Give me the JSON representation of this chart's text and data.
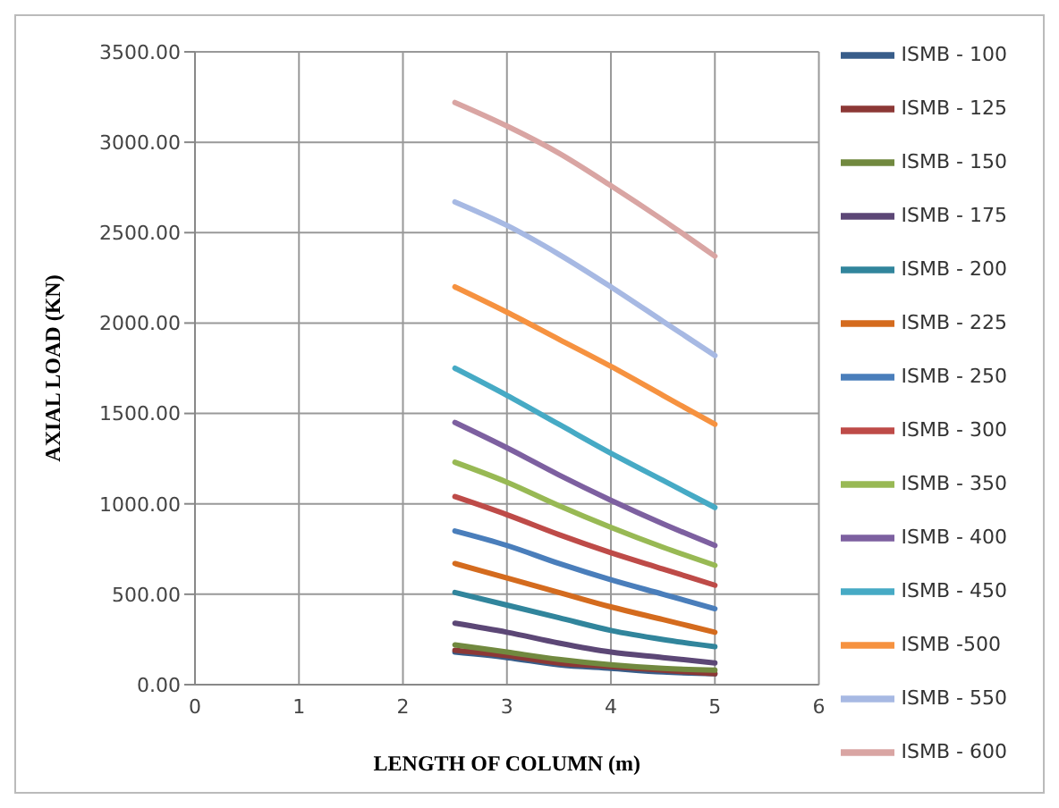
{
  "chart_data": {
    "type": "line",
    "xlabel": "LENGTH OF COLUMN (m)",
    "ylabel": "AXIAL LOAD (KN)",
    "x": [
      2.5,
      3,
      3.5,
      4,
      4.5,
      5
    ],
    "xlim": [
      0,
      6
    ],
    "xticks": [
      0,
      1,
      2,
      3,
      4,
      5,
      6
    ],
    "ylim": [
      0,
      3500
    ],
    "yticks": [
      {
        "value": 0,
        "label": "0.00"
      },
      {
        "value": 500,
        "label": "500.00"
      },
      {
        "value": 1000,
        "label": "1000.00"
      },
      {
        "value": 1500,
        "label": "1500.00"
      },
      {
        "value": 2000,
        "label": "2000.00"
      },
      {
        "value": 2500,
        "label": "2500.00"
      },
      {
        "value": 3000,
        "label": "3000.00"
      },
      {
        "value": 3500,
        "label": "3500.00"
      }
    ],
    "grid": true,
    "legend": "right",
    "marker": "none",
    "line_style": "solid",
    "series": [
      {
        "name": "ISMB - 100",
        "color": "#385d8a",
        "values": [
          180,
          150,
          110,
          90,
          70,
          60
        ]
      },
      {
        "name": "ISMB - 125",
        "color": "#8c3836",
        "values": [
          190,
          160,
          120,
          100,
          80,
          60
        ]
      },
      {
        "name": "ISMB - 150",
        "color": "#71893f",
        "values": [
          220,
          180,
          140,
          110,
          90,
          80
        ]
      },
      {
        "name": "ISMB - 175",
        "color": "#5c4776",
        "values": [
          340,
          290,
          230,
          180,
          150,
          120
        ]
      },
      {
        "name": "ISMB - 200",
        "color": "#31859c",
        "values": [
          510,
          440,
          370,
          300,
          250,
          210
        ]
      },
      {
        "name": "ISMB - 225",
        "color": "#d46b1e",
        "values": [
          670,
          590,
          510,
          430,
          360,
          290
        ]
      },
      {
        "name": "ISMB - 250",
        "color": "#4a7ebb",
        "values": [
          850,
          770,
          670,
          580,
          500,
          420
        ]
      },
      {
        "name": "ISMB - 300",
        "color": "#be4b48",
        "values": [
          1040,
          940,
          830,
          730,
          640,
          550
        ]
      },
      {
        "name": "ISMB - 350",
        "color": "#98b954",
        "values": [
          1230,
          1120,
          990,
          870,
          760,
          660
        ]
      },
      {
        "name": "ISMB - 400",
        "color": "#7d60a0",
        "values": [
          1450,
          1310,
          1160,
          1020,
          890,
          770
        ]
      },
      {
        "name": "ISMB - 450",
        "color": "#46aac5",
        "values": [
          1750,
          1600,
          1440,
          1280,
          1130,
          980
        ]
      },
      {
        "name": "ISMB -500",
        "color": "#f69240",
        "values": [
          2200,
          2060,
          1910,
          1760,
          1600,
          1440
        ]
      },
      {
        "name": "ISMB - 550",
        "color": "#a7b9e3",
        "values": [
          2670,
          2540,
          2380,
          2200,
          2010,
          1820
        ]
      },
      {
        "name": "ISMB - 600",
        "color": "#d9a5a3",
        "values": [
          3220,
          3090,
          2940,
          2760,
          2570,
          2370
        ]
      }
    ]
  }
}
